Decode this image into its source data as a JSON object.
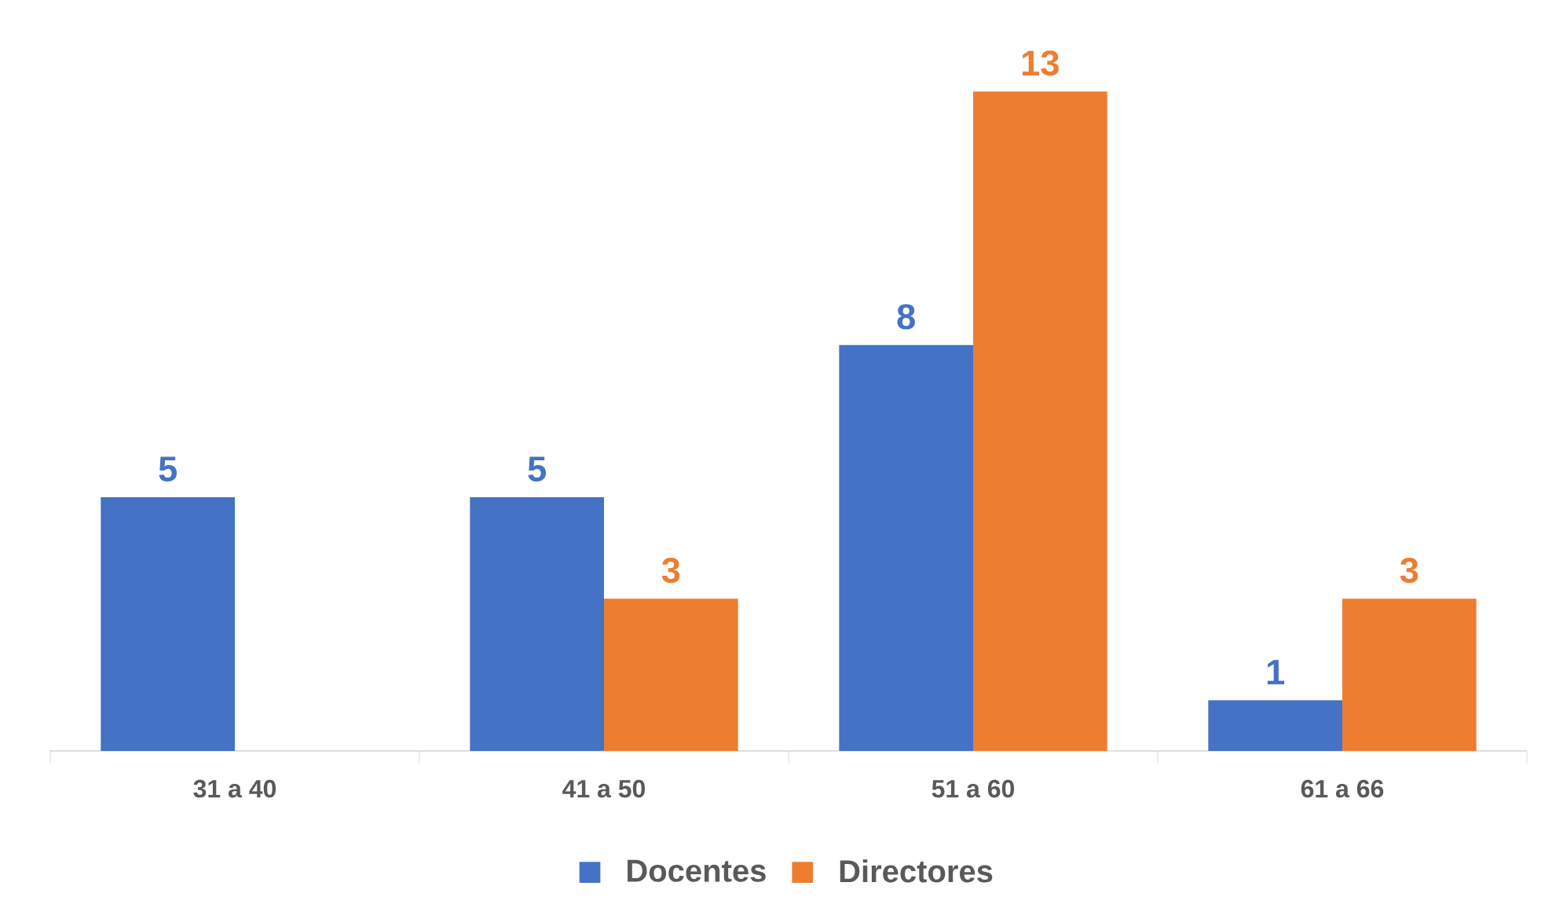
{
  "chart_data": {
    "type": "bar",
    "categories": [
      "31 a 40",
      "41 a 50",
      "51 a 60",
      "61 a 66"
    ],
    "series": [
      {
        "name": "Docentes",
        "color": "#4472c4",
        "values": [
          5,
          5,
          8,
          1
        ]
      },
      {
        "name": "Directores",
        "color": "#ed7d31",
        "values": [
          null,
          3,
          13,
          3
        ]
      }
    ],
    "data_labels": true,
    "legend": "bottom",
    "tick_labels": "x"
  }
}
